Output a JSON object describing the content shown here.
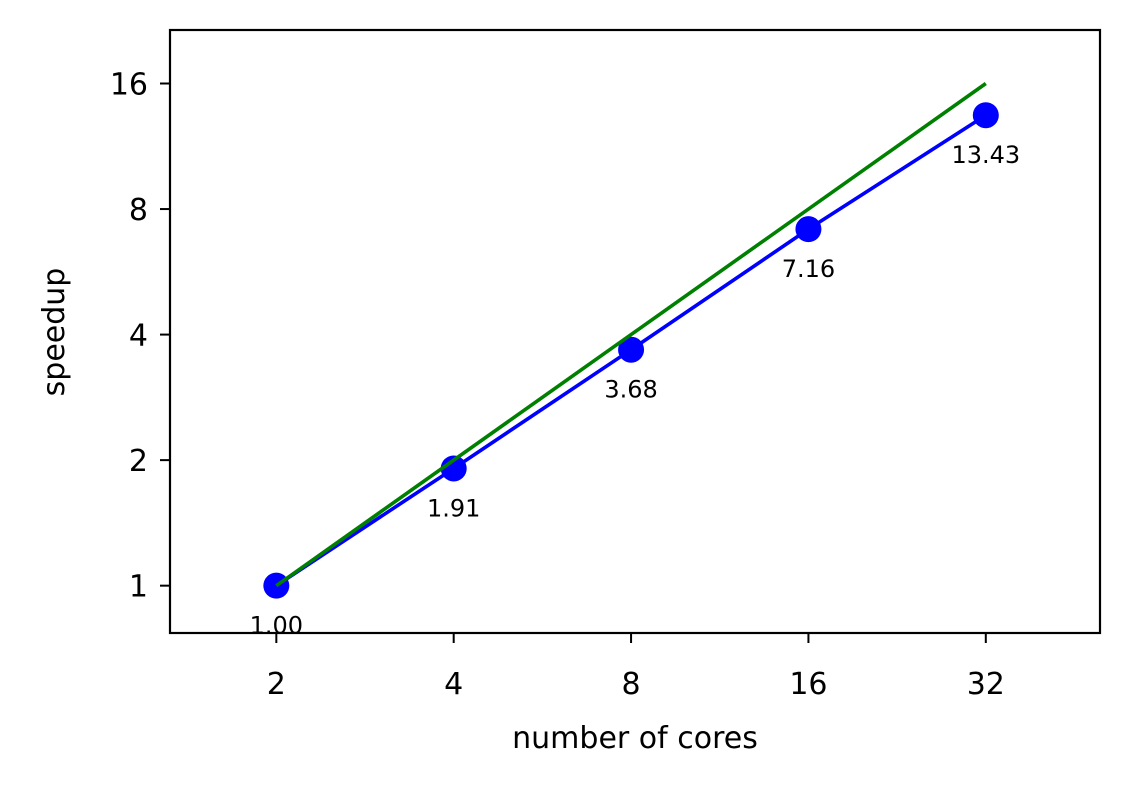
{
  "chart_data": {
    "type": "line",
    "title": "",
    "xlabel": "number of cores",
    "ylabel": "speedup",
    "x_scale": "log2",
    "y_scale": "log2",
    "x": [
      2,
      4,
      8,
      16,
      32
    ],
    "x_tick_labels": [
      "2",
      "4",
      "8",
      "16",
      "32"
    ],
    "y_ticks": [
      1,
      2,
      4,
      8,
      16
    ],
    "y_tick_labels": [
      "1",
      "2",
      "4",
      "8",
      "16"
    ],
    "xlim": [
      1.32,
      50
    ],
    "ylim": [
      0.77,
      21.5
    ],
    "grid": false,
    "legend": "none",
    "series": [
      {
        "values": [
          1.0,
          1.91,
          3.68,
          7.16,
          13.43
        ],
        "data_labels": [
          "1.00",
          "1.91",
          "3.68",
          "7.16",
          "13.43"
        ],
        "color": "#0000ff",
        "markers": true
      },
      {
        "values": [
          1,
          2,
          4,
          8,
          16
        ],
        "color": "#008000",
        "markers": false
      }
    ]
  }
}
